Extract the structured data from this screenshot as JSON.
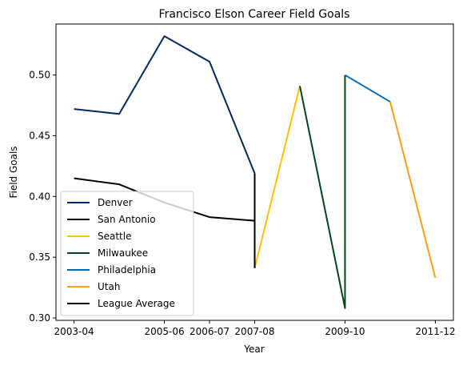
{
  "chart_data": {
    "type": "line",
    "title": "Francisco Elson Career Field Goals",
    "xlabel": "Year",
    "ylabel": "Field Goals",
    "x_ticks": [
      "2003-04",
      "2005-06",
      "2006-07",
      "2007-08",
      "2009-10",
      "2011-12"
    ],
    "y_ticks": [
      "0.30",
      "0.35",
      "0.40",
      "0.45",
      "0.50"
    ],
    "ylim": [
      0.298,
      0.542
    ],
    "grid": false,
    "legend_position": "lower left",
    "series": [
      {
        "name": "Denver",
        "color": "#002B5C",
        "points": [
          [
            "2003-04",
            0.472
          ],
          [
            "2004-05",
            0.468
          ],
          [
            "2005-06",
            0.532
          ],
          [
            "2006-07",
            0.511
          ],
          [
            "2007-08",
            0.419
          ]
        ]
      },
      {
        "name": "San Antonio",
        "color": "#000000",
        "points": [
          [
            "2007-08",
            0.419
          ],
          [
            "2007-08",
            0.341
          ]
        ]
      },
      {
        "name": "Seattle",
        "color": "#FFC200",
        "points": [
          [
            "2007-08",
            0.341
          ],
          [
            "2008-09",
            0.491
          ]
        ]
      },
      {
        "name": "Milwaukee",
        "color": "#00471B",
        "points": [
          [
            "2008-09",
            0.491
          ],
          [
            "2009-10",
            0.308
          ],
          [
            "2009-10",
            0.5
          ]
        ]
      },
      {
        "name": "Philadelphia",
        "color": "#006BB6",
        "points": [
          [
            "2009-10",
            0.5
          ],
          [
            "2010-11",
            0.478
          ]
        ]
      },
      {
        "name": "Utah",
        "color": "#F9A01B",
        "points": [
          [
            "2010-11",
            0.478
          ],
          [
            "2011-12",
            0.333
          ]
        ]
      },
      {
        "name": "League Average",
        "color": "#000000",
        "points": [
          [
            "2003-04",
            0.415
          ],
          [
            "2004-05",
            0.41
          ],
          [
            "2005-06",
            0.395
          ],
          [
            "2006-07",
            0.383
          ],
          [
            "2007-08",
            0.38
          ],
          [
            "2007-08",
            0.341
          ]
        ]
      }
    ]
  }
}
